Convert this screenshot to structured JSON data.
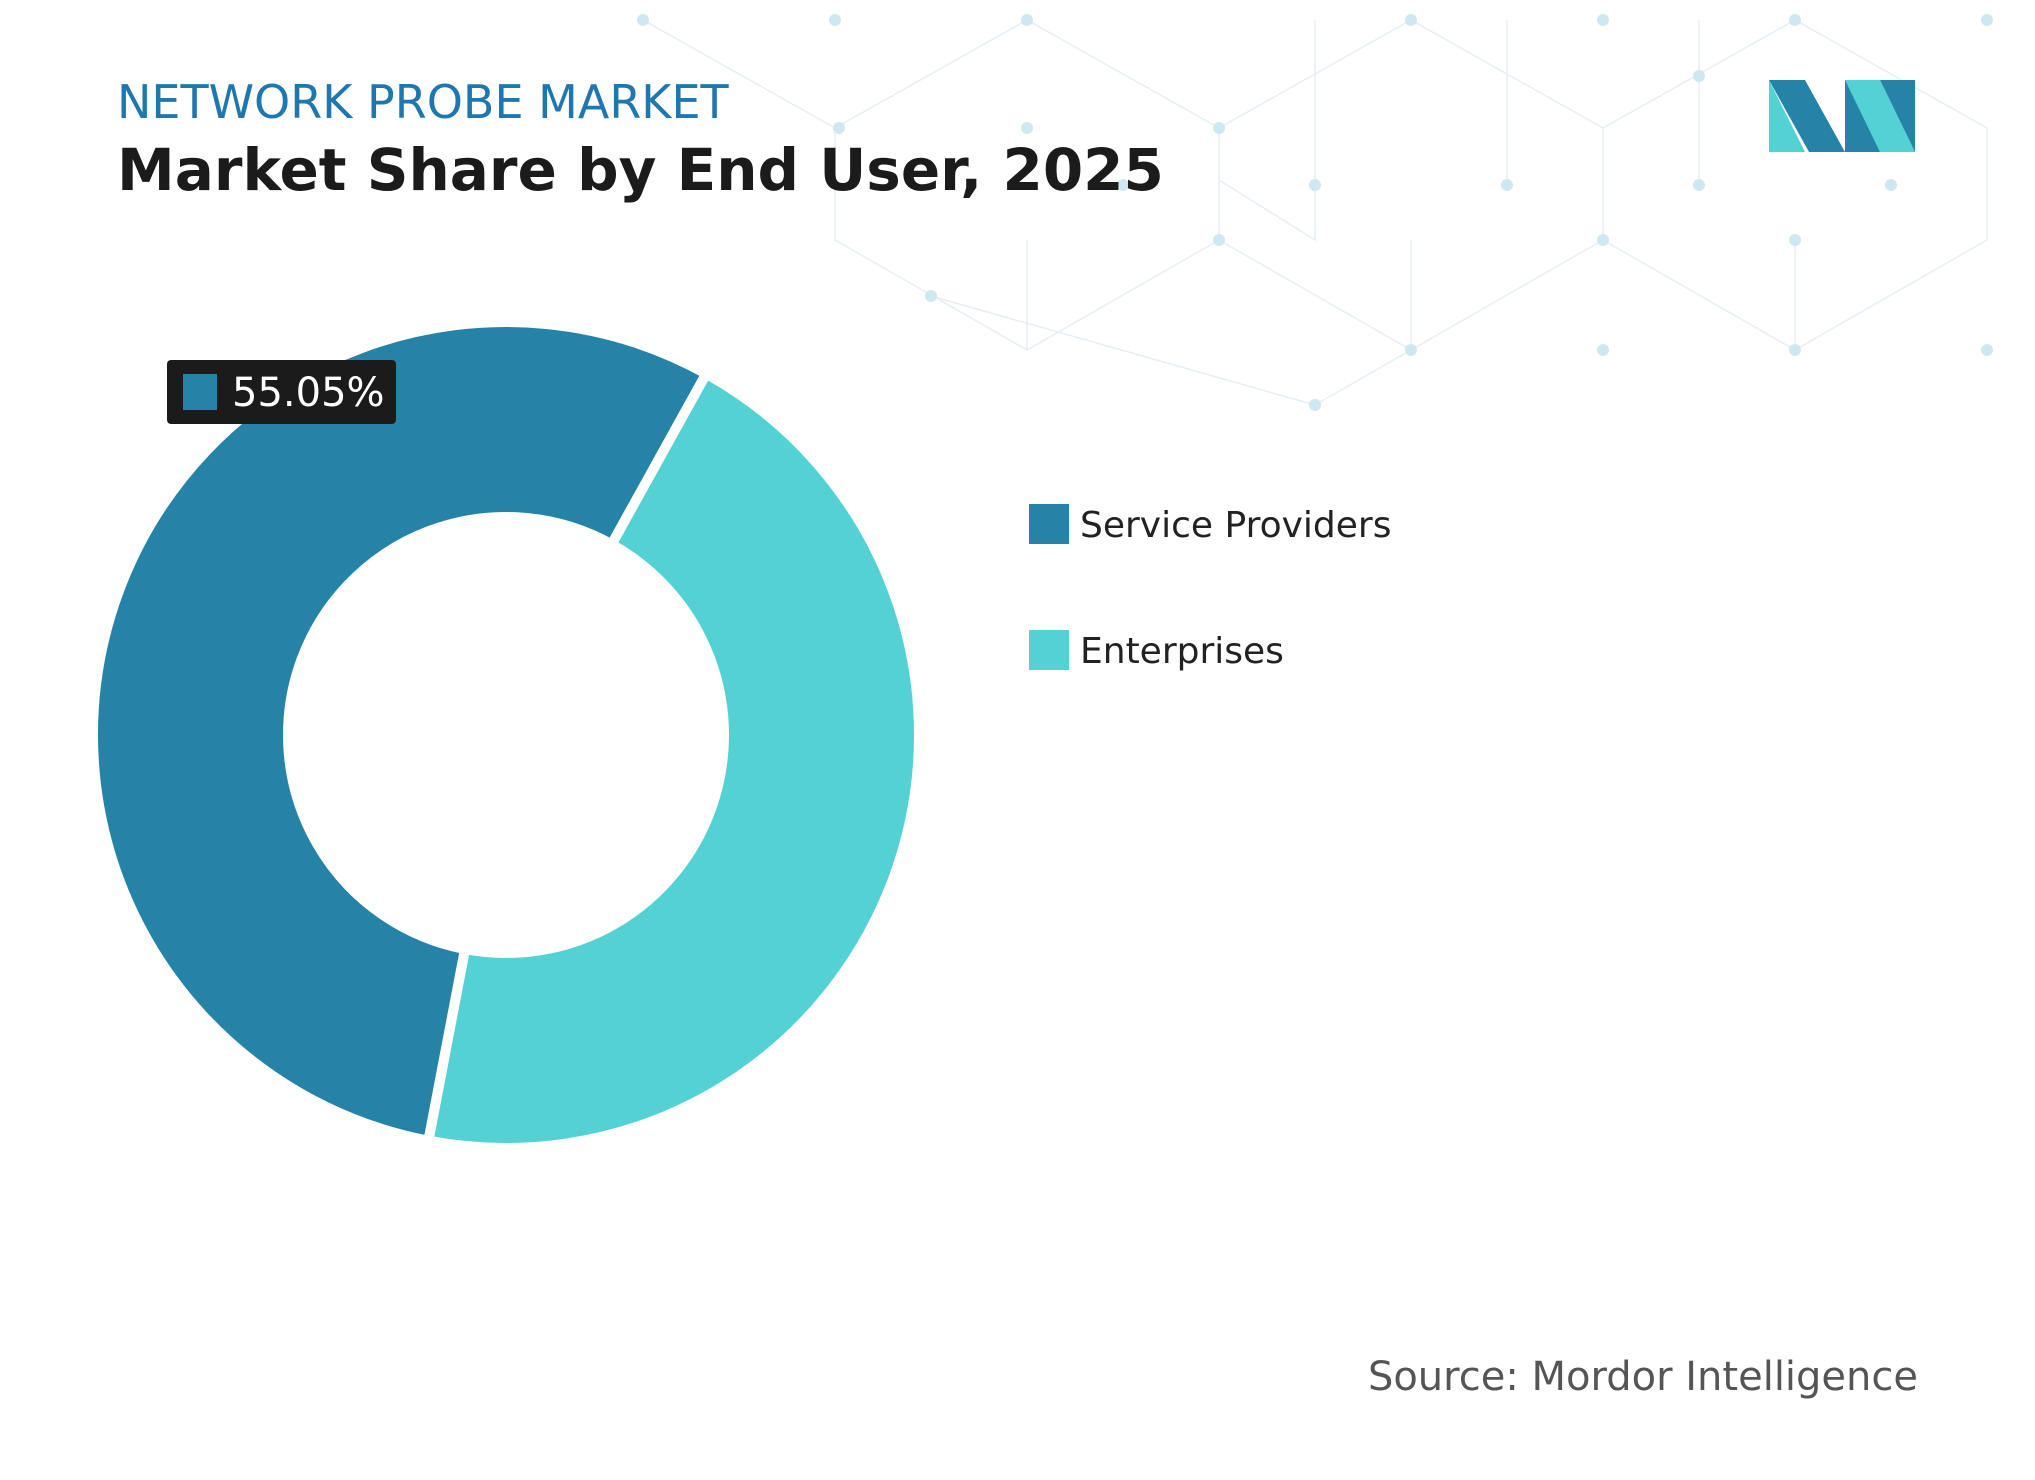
{
  "chart_data": {
    "type": "donut",
    "subtitle": "NETWORK PROBE MARKET",
    "title": "Market Share by End User, 2025",
    "categories": [
      "Service Providers",
      "Enterprises"
    ],
    "values": [
      55.05,
      44.95
    ],
    "value_labels": [
      "55.05%",
      null
    ],
    "colors": [
      "#2683a8",
      "#53d1d3"
    ],
    "source": "Source: Mordor Intelligence"
  }
}
